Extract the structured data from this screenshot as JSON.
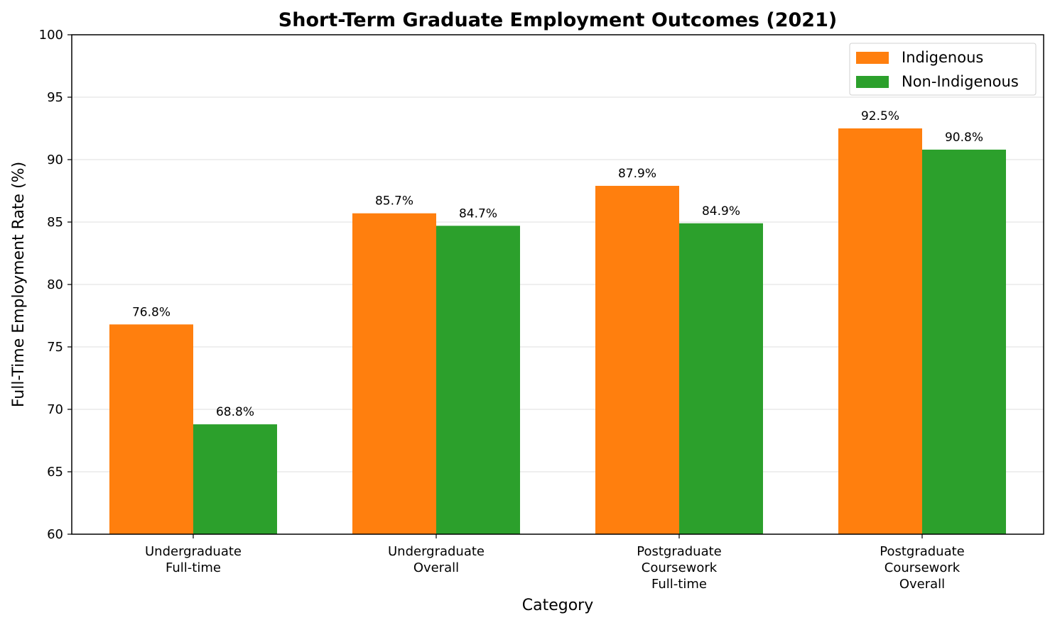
{
  "chart_data": {
    "type": "bar",
    "title": "Short-Term Graduate Employment Outcomes (2021)",
    "xlabel": "Category",
    "ylabel": "Full-Time Employment Rate (%)",
    "ylim": [
      60,
      100
    ],
    "yticks": [
      60,
      65,
      70,
      75,
      80,
      85,
      90,
      95,
      100
    ],
    "grid": "horizontal",
    "legend_position": "top-right",
    "categories": [
      [
        "Undergraduate",
        "Full-time"
      ],
      [
        "Undergraduate",
        "Overall"
      ],
      [
        "Postgraduate",
        "Coursework",
        "Full-time"
      ],
      [
        "Postgraduate",
        "Coursework",
        "Overall"
      ]
    ],
    "series": [
      {
        "name": "Indigenous",
        "color": "#ff7f0e",
        "values": [
          76.8,
          85.7,
          87.9,
          92.5
        ],
        "labels": [
          "76.8%",
          "85.7%",
          "87.9%",
          "92.5%"
        ]
      },
      {
        "name": "Non-Indigenous",
        "color": "#2ca02c",
        "values": [
          68.8,
          84.7,
          84.9,
          90.8
        ],
        "labels": [
          "68.8%",
          "84.7%",
          "84.9%",
          "90.8%"
        ]
      }
    ]
  }
}
